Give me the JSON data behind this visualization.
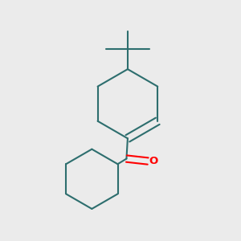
{
  "bg_color": "#ebebeb",
  "bond_color": "#2d6e6e",
  "carbonyl_o_color": "#ff0000",
  "line_width": 1.5,
  "fig_width": 3.0,
  "fig_height": 3.0,
  "dpi": 100
}
